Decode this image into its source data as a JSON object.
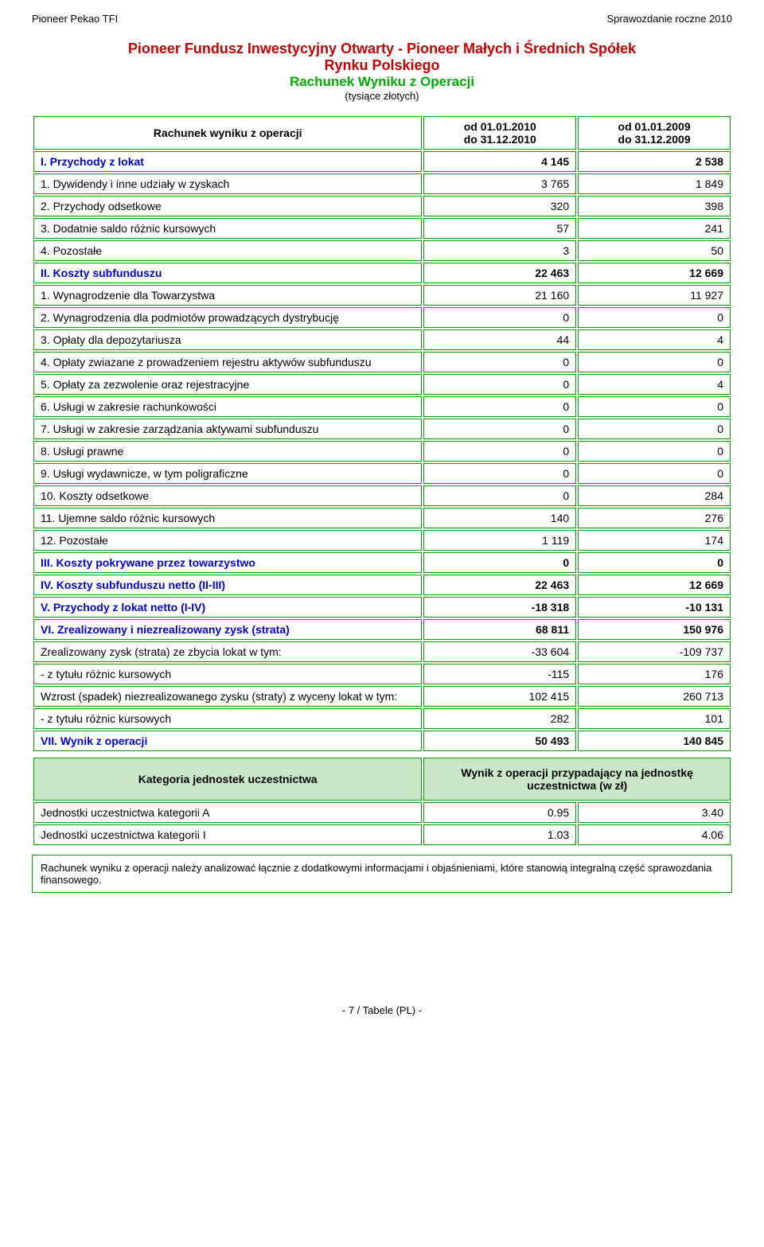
{
  "header": {
    "left": "Pioneer Pekao TFI",
    "right": "Sprawozdanie roczne 2010"
  },
  "title": {
    "line1": "Pioneer Fundusz Inwestycyjny Otwarty - Pioneer Małych i Średnich Spółek",
    "line2": "Rynku Polskiego",
    "line3": "Rachunek Wyniku z Operacji",
    "sub": "(tysiące złotych)"
  },
  "colors": {
    "border": "#009900",
    "section_text": "#0000cc",
    "title_red": "#c00000",
    "title_green": "#00aa00",
    "cat_bg": "#c8e8c8"
  },
  "table": {
    "header": {
      "label": "Rachunek wyniku z operacji",
      "period1_from": "od 01.01.2010",
      "period1_to": "do 31.12.2010",
      "period2_from": "od 01.01.2009",
      "period2_to": "do 31.12.2009"
    },
    "rows": [
      {
        "label": "I. Przychody z lokat",
        "v1": "4 145",
        "v2": "2 538",
        "section": true
      },
      {
        "label": "1. Dywidendy i inne udziały w zyskach",
        "v1": "3 765",
        "v2": "1 849"
      },
      {
        "label": "2. Przychody odsetkowe",
        "v1": "320",
        "v2": "398"
      },
      {
        "label": "3. Dodatnie saldo różnic kursowych",
        "v1": "57",
        "v2": "241"
      },
      {
        "label": "4. Pozostałe",
        "v1": "3",
        "v2": "50"
      },
      {
        "label": "II. Koszty subfunduszu",
        "v1": "22 463",
        "v2": "12 669",
        "section": true
      },
      {
        "label": "1. Wynagrodzenie dla Towarzystwa",
        "v1": "21 160",
        "v2": "11 927"
      },
      {
        "label": "2. Wynagrodzenia dla podmiotów prowadzących dystrybucję",
        "v1": "0",
        "v2": "0"
      },
      {
        "label": "3. Opłaty dla depozytariusza",
        "v1": "44",
        "v2": "4"
      },
      {
        "label": "4. Opłaty zwiazane z prowadzeniem rejestru aktywów subfunduszu",
        "v1": "0",
        "v2": "0"
      },
      {
        "label": "5. Opłaty za zezwolenie oraz rejestracyjne",
        "v1": "0",
        "v2": "4"
      },
      {
        "label": "6. Usługi w zakresie rachunkowości",
        "v1": "0",
        "v2": "0"
      },
      {
        "label": "7. Usługi w zakresie zarządzania aktywami subfunduszu",
        "v1": "0",
        "v2": "0"
      },
      {
        "label": "8. Usługi prawne",
        "v1": "0",
        "v2": "0"
      },
      {
        "label": "9. Usługi wydawnicze, w tym poligraficzne",
        "v1": "0",
        "v2": "0"
      },
      {
        "label": "10. Koszty odsetkowe",
        "v1": "0",
        "v2": "284"
      },
      {
        "label": "11. Ujemne saldo różnic kursowych",
        "v1": "140",
        "v2": "276"
      },
      {
        "label": "12. Pozostałe",
        "v1": "1 119",
        "v2": "174"
      },
      {
        "label": "III. Koszty pokrywane przez towarzystwo",
        "v1": "0",
        "v2": "0",
        "section": true
      },
      {
        "label": "IV. Koszty subfunduszu netto (II-III)",
        "v1": "22 463",
        "v2": "12 669",
        "section": true
      },
      {
        "label": "V. Przychody z lokat netto (I-IV)",
        "v1": "-18 318",
        "v2": "-10 131",
        "section": true
      },
      {
        "label": "VI. Zrealizowany i niezrealizowany zysk (strata)",
        "v1": "68 811",
        "v2": "150 976",
        "section": true
      },
      {
        "label": "Zrealizowany zysk (strata) ze zbycia lokat w tym:",
        "v1": "-33 604",
        "v2": "-109 737"
      },
      {
        "label": "  - z tytułu różnic kursowych",
        "v1": "-115",
        "v2": "176"
      },
      {
        "label": "  Wzrost (spadek) niezrealizowanego zysku (straty) z wyceny lokat w tym:",
        "v1": "102 415",
        "v2": "260 713"
      },
      {
        "label": "  - z tytułu różnic kursowych",
        "v1": "282",
        "v2": "101"
      },
      {
        "label": "VII. Wynik z operacji",
        "v1": "50 493",
        "v2": "140 845",
        "section": true
      }
    ]
  },
  "category": {
    "header": {
      "label": "Kategoria jednostek uczestnictwa",
      "val": "Wynik z operacji przypadający na jednostkę uczestnictwa (w zł)"
    },
    "rows": [
      {
        "label": "Jednostki uczestnictwa kategorii A",
        "v1": "0.95",
        "v2": "3.40"
      },
      {
        "label": "Jednostki uczestnictwa kategorii I",
        "v1": "1.03",
        "v2": "4.06"
      }
    ]
  },
  "footnote": "Rachunek wyniku z operacji należy analizować łącznie z dodatkowymi informacjami i objaśnieniami, które stanowią integralną część sprawozdania finansowego.",
  "footer": "- 7 / Tabele (PL) -"
}
